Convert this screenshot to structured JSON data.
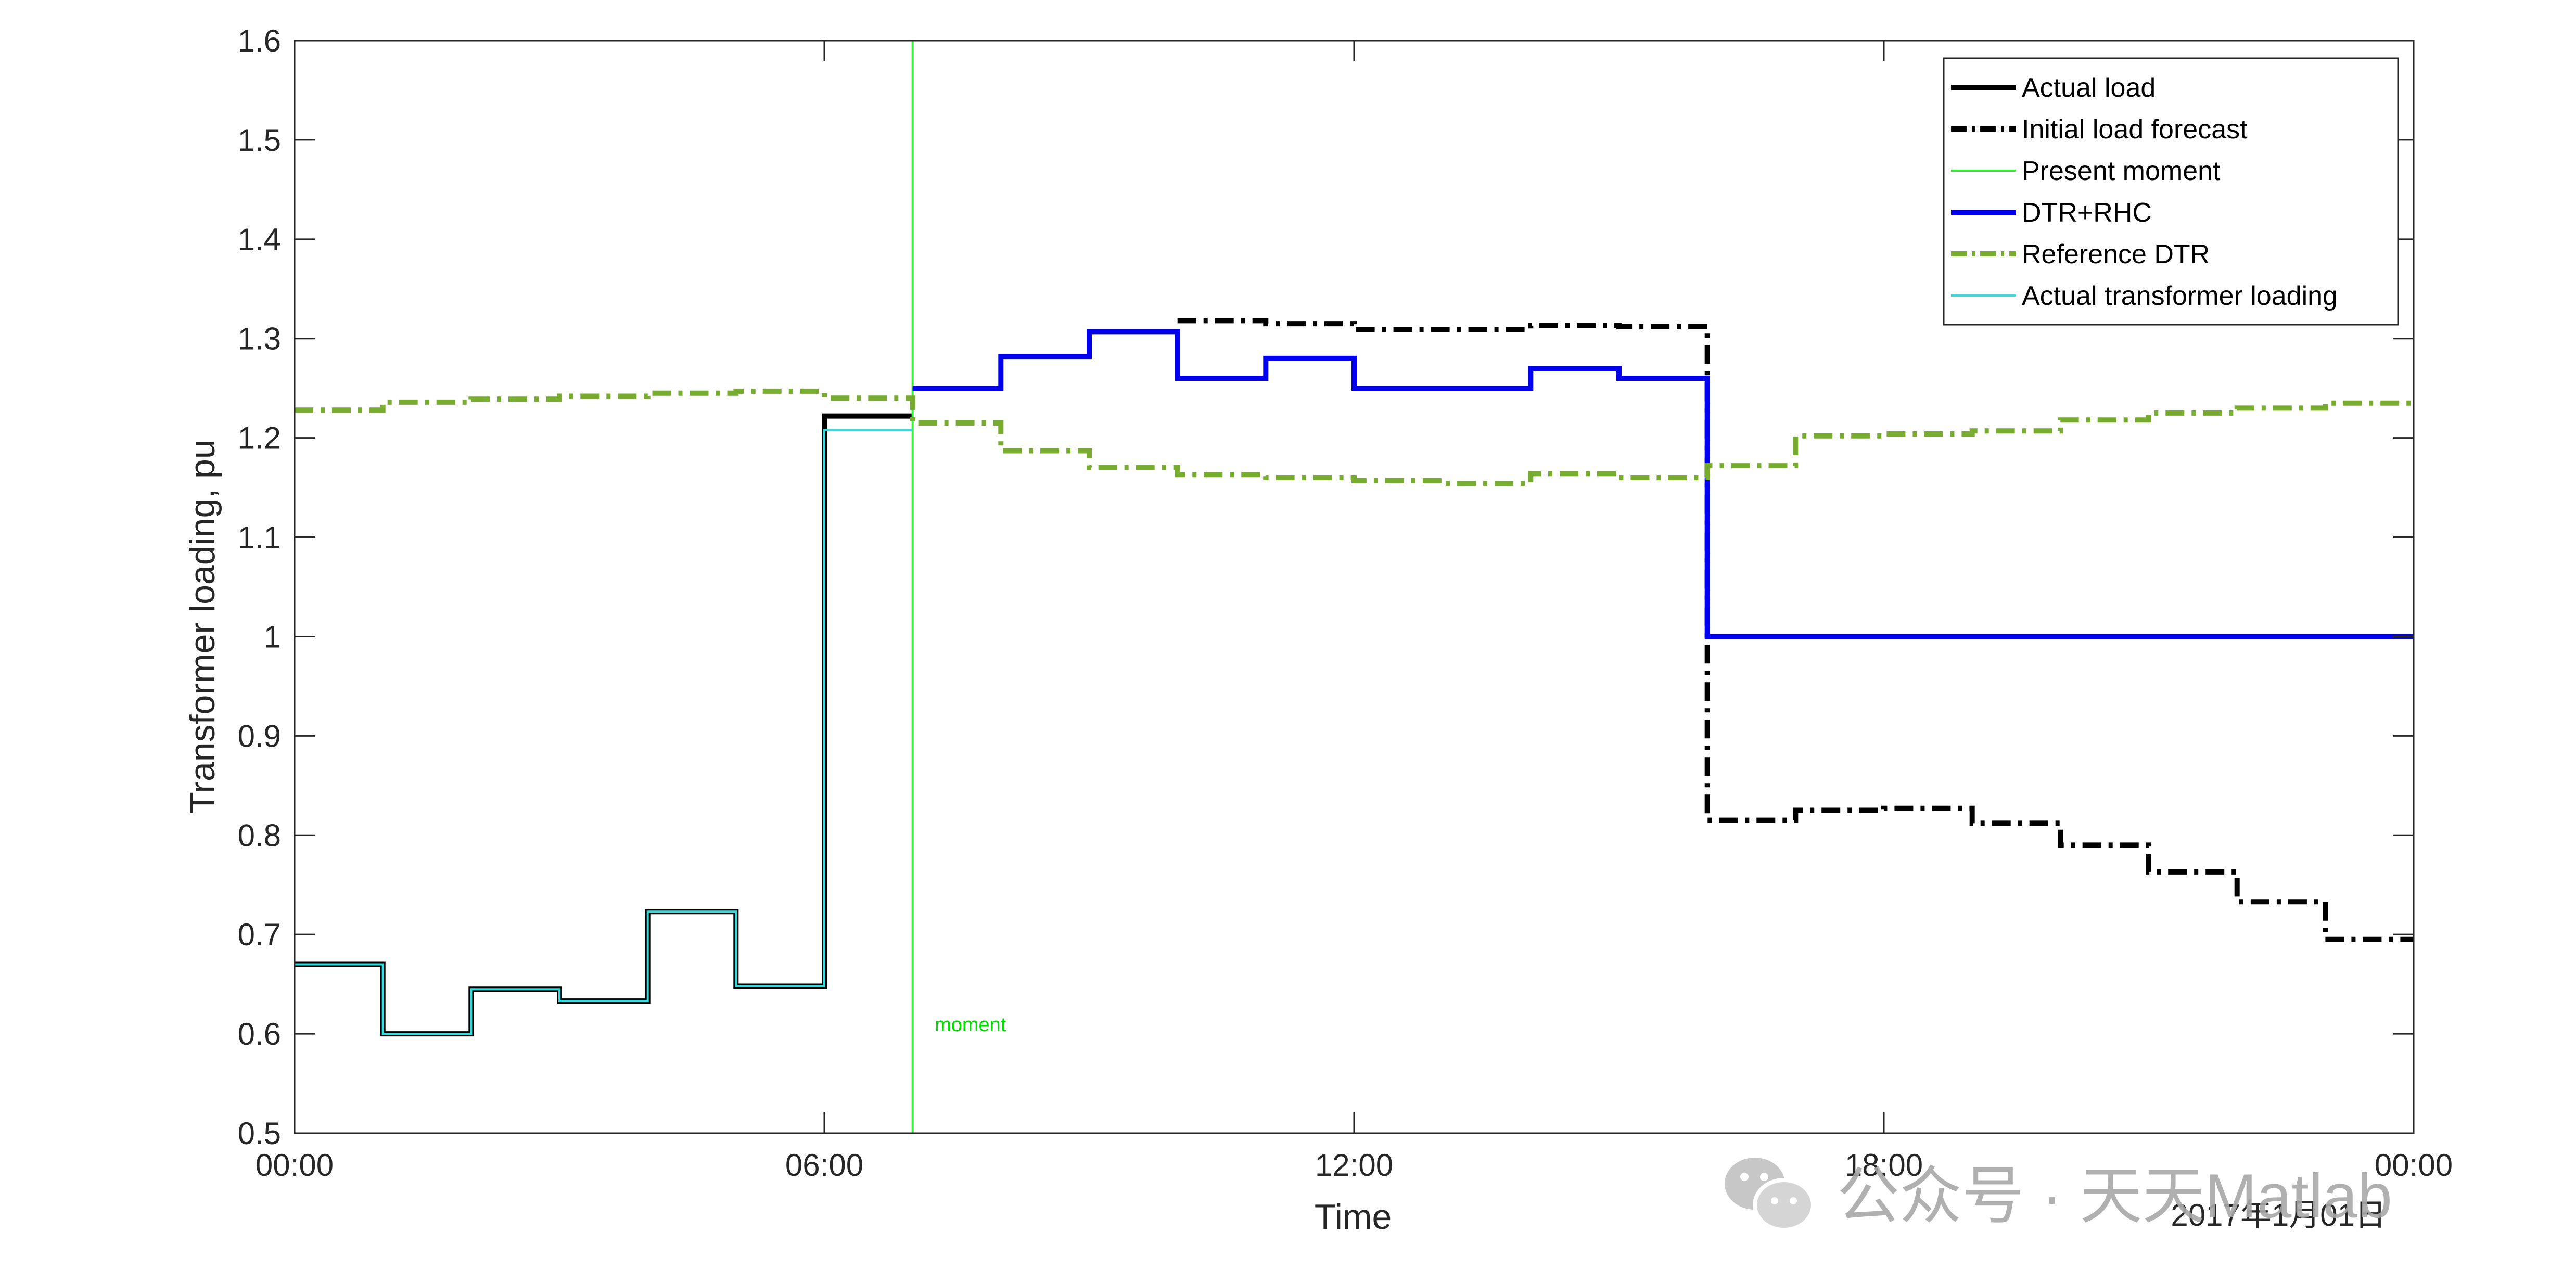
{
  "chart_data": {
    "type": "line",
    "xlabel": "Time",
    "ylabel": "Transformer loading, pu",
    "date_label": "2017年1月01日",
    "xlim": [
      0,
      24
    ],
    "ylim": [
      0.5,
      1.6
    ],
    "x_ticks": [
      {
        "value": 0,
        "label": "00:00"
      },
      {
        "value": 6,
        "label": "06:00"
      },
      {
        "value": 12,
        "label": "12:00"
      },
      {
        "value": 18,
        "label": "18:00"
      },
      {
        "value": 24,
        "label": "00:00"
      }
    ],
    "y_ticks": [
      {
        "value": 0.5,
        "label": "0.5"
      },
      {
        "value": 0.6,
        "label": "0.6"
      },
      {
        "value": 0.7,
        "label": "0.7"
      },
      {
        "value": 0.8,
        "label": "0.8"
      },
      {
        "value": 0.9,
        "label": "0.9"
      },
      {
        "value": 1.0,
        "label": "1"
      },
      {
        "value": 1.1,
        "label": "1.1"
      },
      {
        "value": 1.2,
        "label": "1.2"
      },
      {
        "value": 1.3,
        "label": "1.3"
      },
      {
        "value": 1.4,
        "label": "1.4"
      },
      {
        "value": 1.5,
        "label": "1.5"
      },
      {
        "value": 1.6,
        "label": "1.6"
      }
    ],
    "grid": false,
    "legend_position": "top-right",
    "present_moment": 7,
    "annotation": {
      "text": "moment",
      "x": 7.25,
      "y": 0.61
    },
    "series": [
      {
        "name": "Actual load",
        "color": "#000000",
        "style": "solid",
        "steps": [
          {
            "x0": 0,
            "x1": 1,
            "y": 0.67
          },
          {
            "x0": 1,
            "x1": 2,
            "y": 0.6
          },
          {
            "x0": 2,
            "x1": 3,
            "y": 0.645
          },
          {
            "x0": 3,
            "x1": 4,
            "y": 0.633
          },
          {
            "x0": 4,
            "x1": 5,
            "y": 0.723
          },
          {
            "x0": 5,
            "x1": 6,
            "y": 0.648
          },
          {
            "x0": 6,
            "x1": 7,
            "y": 1.222
          }
        ]
      },
      {
        "name": "Initial load forecast",
        "color": "#000000",
        "style": "dashdot",
        "steps": [
          {
            "x0": 10,
            "x1": 11,
            "y": 1.318
          },
          {
            "x0": 11,
            "x1": 12,
            "y": 1.315
          },
          {
            "x0": 12,
            "x1": 13,
            "y": 1.309
          },
          {
            "x0": 13,
            "x1": 14,
            "y": 1.309
          },
          {
            "x0": 14,
            "x1": 15,
            "y": 1.313
          },
          {
            "x0": 15,
            "x1": 16,
            "y": 1.312
          },
          {
            "x0": 16,
            "x1": 17,
            "y": 0.815
          },
          {
            "x0": 17,
            "x1": 18,
            "y": 0.825
          },
          {
            "x0": 18,
            "x1": 19,
            "y": 0.827
          },
          {
            "x0": 19,
            "x1": 20,
            "y": 0.812
          },
          {
            "x0": 20,
            "x1": 21,
            "y": 0.79
          },
          {
            "x0": 21,
            "x1": 22,
            "y": 0.763
          },
          {
            "x0": 22,
            "x1": 23,
            "y": 0.733
          },
          {
            "x0": 23,
            "x1": 24,
            "y": 0.695
          }
        ]
      },
      {
        "name": "Present moment",
        "color": "#33ee33",
        "style": "vertical"
      },
      {
        "name": "DTR+RHC",
        "color": "#0000ee",
        "style": "solid",
        "steps": [
          {
            "x0": 7,
            "x1": 8,
            "y": 1.25
          },
          {
            "x0": 8,
            "x1": 9,
            "y": 1.282
          },
          {
            "x0": 9,
            "x1": 10,
            "y": 1.307
          },
          {
            "x0": 10,
            "x1": 11,
            "y": 1.26
          },
          {
            "x0": 11,
            "x1": 12,
            "y": 1.28
          },
          {
            "x0": 12,
            "x1": 13,
            "y": 1.25
          },
          {
            "x0": 13,
            "x1": 14,
            "y": 1.25
          },
          {
            "x0": 14,
            "x1": 15,
            "y": 1.27
          },
          {
            "x0": 15,
            "x1": 16,
            "y": 1.26
          },
          {
            "x0": 16,
            "x1": 24,
            "y": 1.0
          }
        ]
      },
      {
        "name": "Reference DTR",
        "color": "#77ac30",
        "style": "dashdot",
        "steps": [
          {
            "x0": 0,
            "x1": 1,
            "y": 1.228
          },
          {
            "x0": 1,
            "x1": 2,
            "y": 1.236
          },
          {
            "x0": 2,
            "x1": 3,
            "y": 1.239
          },
          {
            "x0": 3,
            "x1": 4,
            "y": 1.242
          },
          {
            "x0": 4,
            "x1": 5,
            "y": 1.245
          },
          {
            "x0": 5,
            "x1": 6,
            "y": 1.247
          },
          {
            "x0": 6,
            "x1": 7,
            "y": 1.24
          },
          {
            "x0": 7,
            "x1": 8,
            "y": 1.215
          },
          {
            "x0": 8,
            "x1": 9,
            "y": 1.187
          },
          {
            "x0": 9,
            "x1": 10,
            "y": 1.17
          },
          {
            "x0": 10,
            "x1": 11,
            "y": 1.163
          },
          {
            "x0": 11,
            "x1": 12,
            "y": 1.16
          },
          {
            "x0": 12,
            "x1": 13,
            "y": 1.157
          },
          {
            "x0": 13,
            "x1": 14,
            "y": 1.154
          },
          {
            "x0": 14,
            "x1": 15,
            "y": 1.164
          },
          {
            "x0": 15,
            "x1": 16,
            "y": 1.16
          },
          {
            "x0": 16,
            "x1": 17,
            "y": 1.172
          },
          {
            "x0": 17,
            "x1": 18,
            "y": 1.202
          },
          {
            "x0": 18,
            "x1": 19,
            "y": 1.204
          },
          {
            "x0": 19,
            "x1": 20,
            "y": 1.207
          },
          {
            "x0": 20,
            "x1": 21,
            "y": 1.218
          },
          {
            "x0": 21,
            "x1": 22,
            "y": 1.225
          },
          {
            "x0": 22,
            "x1": 23,
            "y": 1.23
          },
          {
            "x0": 23,
            "x1": 24,
            "y": 1.235
          }
        ]
      },
      {
        "name": "Actual transformer loading",
        "color": "#33dddd",
        "style": "solid",
        "steps": [
          {
            "x0": 0,
            "x1": 1,
            "y": 0.67
          },
          {
            "x0": 1,
            "x1": 2,
            "y": 0.6
          },
          {
            "x0": 2,
            "x1": 3,
            "y": 0.645
          },
          {
            "x0": 3,
            "x1": 4,
            "y": 0.633
          },
          {
            "x0": 4,
            "x1": 5,
            "y": 0.723
          },
          {
            "x0": 5,
            "x1": 6,
            "y": 0.648
          },
          {
            "x0": 6,
            "x1": 7,
            "y": 1.208
          }
        ]
      }
    ]
  },
  "watermark": {
    "text": "公众号 · 天天Matlab",
    "icon": "wechat-icon"
  }
}
